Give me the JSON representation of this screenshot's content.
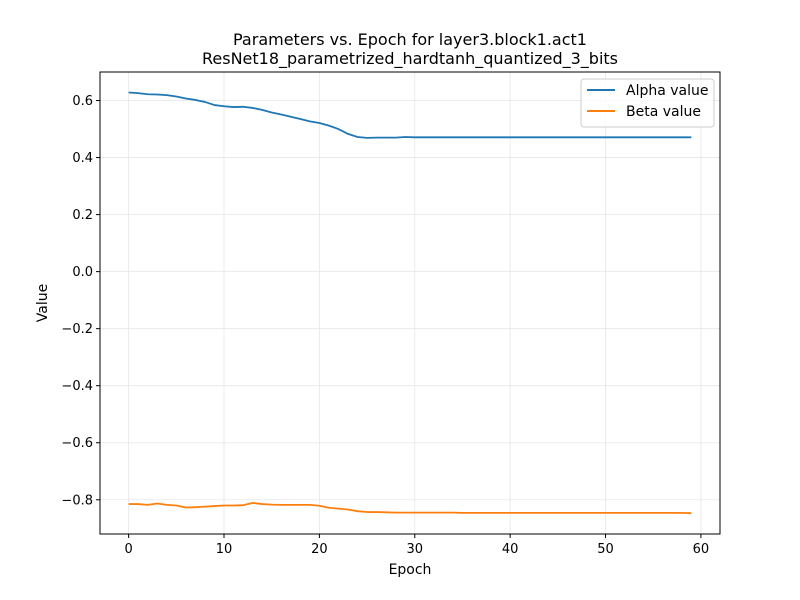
{
  "chart_data": {
    "type": "line",
    "title": "Parameters vs. Epoch for layer3.block1.act1",
    "subtitle": "ResNet18_parametrized_hardtanh_quantized_3_bits",
    "xlabel": "Epoch",
    "ylabel": "Value",
    "xlim": [
      -3,
      62
    ],
    "ylim": [
      -0.92,
      0.7
    ],
    "xticks": [
      0,
      10,
      20,
      30,
      40,
      50,
      60
    ],
    "yticks": [
      -0.8,
      -0.6,
      -0.4,
      -0.2,
      0.0,
      0.2,
      0.4,
      0.6
    ],
    "grid": true,
    "legend_position": "top-right",
    "x": [
      0,
      1,
      2,
      3,
      4,
      5,
      6,
      7,
      8,
      9,
      10,
      11,
      12,
      13,
      14,
      15,
      16,
      17,
      18,
      19,
      20,
      21,
      22,
      23,
      24,
      25,
      26,
      27,
      28,
      29,
      30,
      31,
      32,
      33,
      34,
      35,
      36,
      37,
      38,
      39,
      40,
      41,
      42,
      43,
      44,
      45,
      46,
      47,
      48,
      49,
      50,
      51,
      52,
      53,
      54,
      55,
      56,
      57,
      58,
      59
    ],
    "series": [
      {
        "name": "Alpha value",
        "color": "#1f77b4",
        "values": [
          0.628,
          0.626,
          0.622,
          0.621,
          0.619,
          0.614,
          0.607,
          0.602,
          0.595,
          0.584,
          0.58,
          0.577,
          0.578,
          0.574,
          0.567,
          0.558,
          0.551,
          0.543,
          0.535,
          0.527,
          0.521,
          0.512,
          0.5,
          0.483,
          0.472,
          0.469,
          0.47,
          0.47,
          0.47,
          0.472,
          0.471,
          0.471,
          0.471,
          0.471,
          0.471,
          0.471,
          0.471,
          0.471,
          0.471,
          0.471,
          0.471,
          0.471,
          0.471,
          0.471,
          0.471,
          0.471,
          0.471,
          0.471,
          0.471,
          0.471,
          0.471,
          0.471,
          0.471,
          0.471,
          0.471,
          0.471,
          0.471,
          0.471,
          0.471,
          0.471
        ]
      },
      {
        "name": "Beta value",
        "color": "#ff7f0e",
        "values": [
          -0.815,
          -0.815,
          -0.818,
          -0.813,
          -0.818,
          -0.82,
          -0.827,
          -0.826,
          -0.824,
          -0.822,
          -0.82,
          -0.82,
          -0.819,
          -0.811,
          -0.815,
          -0.817,
          -0.818,
          -0.818,
          -0.818,
          -0.818,
          -0.821,
          -0.828,
          -0.831,
          -0.834,
          -0.84,
          -0.843,
          -0.843,
          -0.844,
          -0.845,
          -0.845,
          -0.845,
          -0.845,
          -0.845,
          -0.845,
          -0.845,
          -0.846,
          -0.846,
          -0.846,
          -0.846,
          -0.846,
          -0.846,
          -0.846,
          -0.846,
          -0.846,
          -0.846,
          -0.846,
          -0.846,
          -0.846,
          -0.846,
          -0.846,
          -0.846,
          -0.846,
          -0.846,
          -0.846,
          -0.846,
          -0.846,
          -0.846,
          -0.846,
          -0.846,
          -0.847
        ]
      }
    ]
  }
}
